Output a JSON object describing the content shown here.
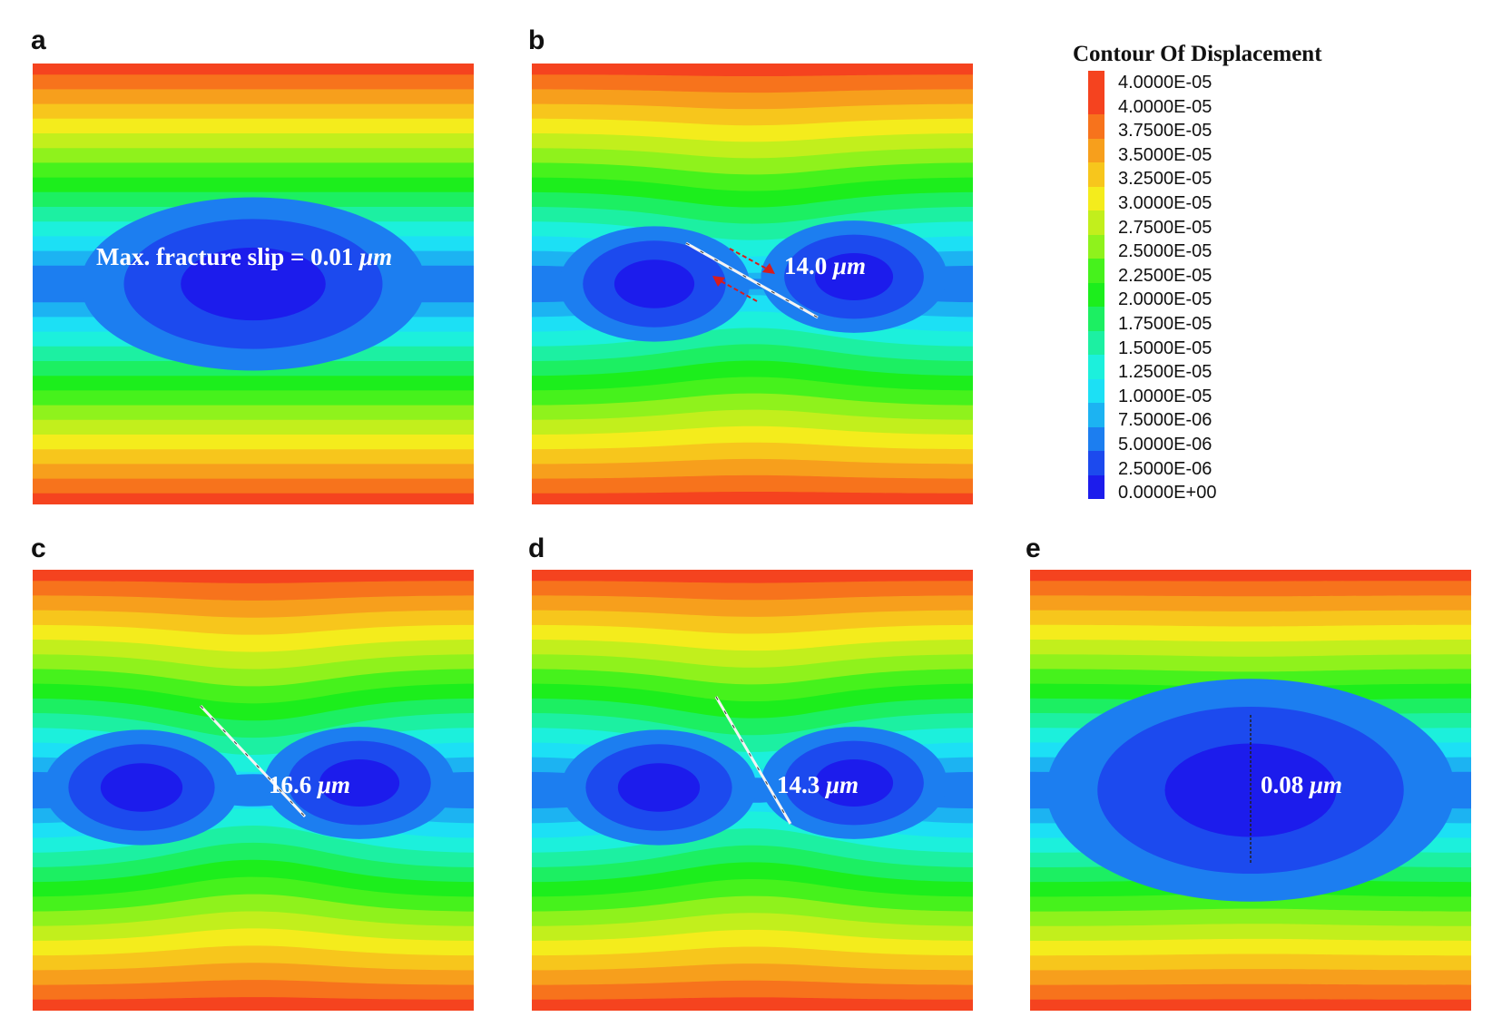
{
  "legend": {
    "title": "Contour Of Displacement",
    "labels": [
      "4.0000E-05",
      "4.0000E-05",
      "3.7500E-05",
      "3.5000E-05",
      "3.2500E-05",
      "3.0000E-05",
      "2.7500E-05",
      "2.5000E-05",
      "2.2500E-05",
      "2.0000E-05",
      "1.7500E-05",
      "1.5000E-05",
      "1.2500E-05",
      "1.0000E-05",
      "7.5000E-06",
      "5.0000E-06",
      "2.5000E-06",
      "0.0000E+00"
    ],
    "colors": [
      "#e8141a",
      "#f5431f",
      "#f7731c",
      "#f79f1c",
      "#f7c61c",
      "#f4ec1c",
      "#c2ef1c",
      "#8ff21c",
      "#46f21c",
      "#1cee1c",
      "#1cef62",
      "#1cf0a2",
      "#1cf0dc",
      "#1ce0f5",
      "#1cb3f2",
      "#1c7ef0",
      "#1c4aee",
      "#1c1cec"
    ]
  },
  "panels": [
    {
      "letter": "a",
      "label_prefix": "Max. fracture slip  = 0.01 ",
      "label_unit": "μm"
    },
    {
      "letter": "b",
      "label_prefix": "14.0 ",
      "label_unit": "μm"
    },
    {
      "letter": "c",
      "label_prefix": "16.6 ",
      "label_unit": "μm"
    },
    {
      "letter": "d",
      "label_prefix": "14.3 ",
      "label_unit": "μm"
    },
    {
      "letter": "e",
      "label_prefix": "0.08 ",
      "label_unit": "μm"
    }
  ],
  "fracture_icon": "fracture-line",
  "slip_arrow_color": "#d81c1c"
}
